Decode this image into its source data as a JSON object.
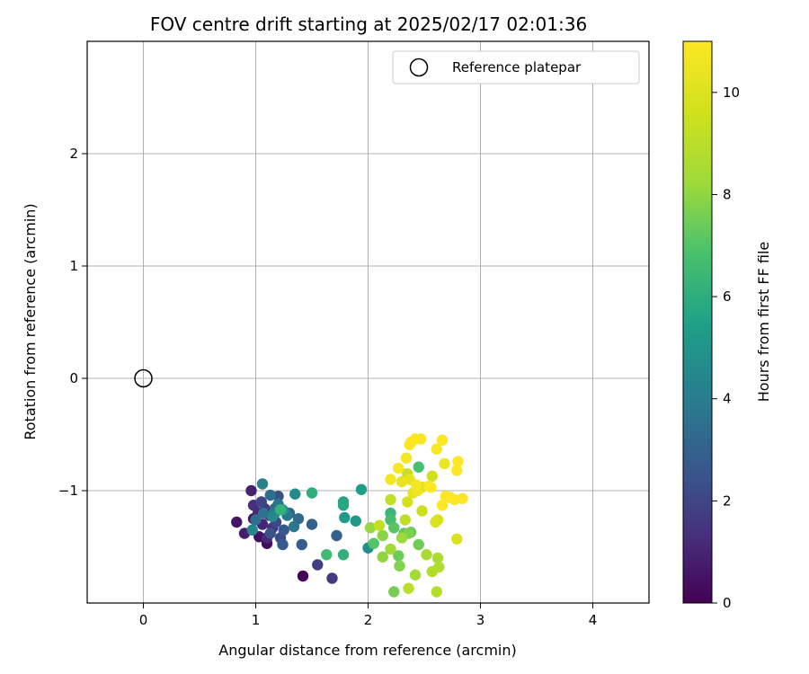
{
  "chart_data": {
    "type": "scatter",
    "title": "FOV centre drift starting at 2025/02/17 02:01:36",
    "xlabel": "Angular distance from reference (arcmin)",
    "ylabel": "Rotation from reference (arcmin)",
    "xlim": [
      -0.5,
      4.5
    ],
    "ylim": [
      -2.0,
      3.0
    ],
    "x_ticks": [
      0,
      1,
      2,
      3,
      4
    ],
    "x_tick_labels": [
      "0",
      "1",
      "2",
      "3",
      "4"
    ],
    "y_ticks": [
      -1,
      0,
      1,
      2
    ],
    "y_tick_labels": [
      "−1",
      "0",
      "1",
      "2"
    ],
    "grid": true,
    "legend": {
      "location": "upper right",
      "label": "Reference platepar"
    },
    "reference_point": {
      "x": 0.0,
      "y": 0.0
    },
    "colorbar": {
      "label": "Hours from first FF file",
      "colormap": "viridis",
      "range": [
        0,
        11
      ],
      "ticks": [
        0,
        2,
        4,
        6,
        8,
        10
      ],
      "tick_labels": [
        "0",
        "2",
        "4",
        "6",
        "8",
        "10"
      ]
    },
    "points": [
      [
        1.42,
        -1.76,
        0.1
      ],
      [
        1.1,
        -1.47,
        0.3
      ],
      [
        1.03,
        -1.41,
        0.4
      ],
      [
        0.98,
        -1.25,
        0.5
      ],
      [
        0.83,
        -1.28,
        0.6
      ],
      [
        0.9,
        -1.38,
        0.8
      ],
      [
        0.96,
        -1.0,
        0.9
      ],
      [
        1.06,
        -1.3,
        1.0
      ],
      [
        1.1,
        -1.42,
        1.1
      ],
      [
        1.02,
        -1.2,
        1.2
      ],
      [
        0.98,
        -1.13,
        1.3
      ],
      [
        1.15,
        -1.33,
        1.4
      ],
      [
        1.08,
        -1.16,
        1.5
      ],
      [
        1.68,
        -1.78,
        1.6
      ],
      [
        1.55,
        -1.66,
        1.8
      ],
      [
        1.12,
        -1.22,
        1.9
      ],
      [
        1.05,
        -1.1,
        2.0
      ],
      [
        1.18,
        -1.28,
        2.1
      ],
      [
        1.22,
        -1.42,
        2.2
      ],
      [
        1.2,
        -1.05,
        2.3
      ],
      [
        1.13,
        -1.38,
        2.4
      ],
      [
        1.25,
        -1.35,
        2.6
      ],
      [
        1.24,
        -1.48,
        2.7
      ],
      [
        1.41,
        -1.48,
        2.8
      ],
      [
        1.5,
        -1.3,
        2.9
      ],
      [
        1.72,
        -1.4,
        3.0
      ],
      [
        1.17,
        -1.16,
        3.1
      ],
      [
        1.3,
        -1.2,
        3.2
      ],
      [
        1.38,
        -1.25,
        3.3
      ],
      [
        1.13,
        -1.04,
        3.4
      ],
      [
        1.0,
        -1.26,
        3.5
      ],
      [
        1.07,
        -1.2,
        3.6
      ],
      [
        1.2,
        -1.12,
        3.7
      ],
      [
        1.34,
        -1.32,
        3.8
      ],
      [
        1.28,
        -1.22,
        3.9
      ],
      [
        1.17,
        -1.2,
        4.0
      ],
      [
        1.06,
        -0.94,
        4.2
      ],
      [
        0.97,
        -1.35,
        4.4
      ],
      [
        1.15,
        -1.23,
        4.5
      ],
      [
        1.35,
        -1.03,
        4.6
      ],
      [
        2.0,
        -1.51,
        4.8
      ],
      [
        1.24,
        -1.17,
        5.0
      ],
      [
        1.89,
        -1.27,
        5.1
      ],
      [
        1.79,
        -1.24,
        5.2
      ],
      [
        1.94,
        -0.99,
        5.4
      ],
      [
        1.78,
        -1.1,
        5.6
      ],
      [
        1.78,
        -1.13,
        5.8
      ],
      [
        1.5,
        -1.02,
        6.0
      ],
      [
        1.78,
        -1.57,
        6.1
      ],
      [
        1.22,
        -1.17,
        6.2
      ],
      [
        2.2,
        -1.2,
        6.4
      ],
      [
        1.63,
        -1.57,
        6.6
      ],
      [
        2.2,
        -1.26,
        6.7
      ],
      [
        2.45,
        -0.79,
        6.8
      ],
      [
        2.05,
        -1.47,
        7.0
      ],
      [
        2.23,
        -1.33,
        7.1
      ],
      [
        2.32,
        -1.38,
        7.2
      ],
      [
        2.38,
        -1.37,
        7.3
      ],
      [
        2.27,
        -1.58,
        7.4
      ],
      [
        2.45,
        -1.48,
        7.5
      ],
      [
        2.23,
        -1.9,
        7.6
      ],
      [
        2.36,
        -1.38,
        7.7
      ],
      [
        2.28,
        -1.67,
        7.8
      ],
      [
        2.13,
        -1.4,
        7.9
      ],
      [
        2.13,
        -1.59,
        8.0
      ],
      [
        2.02,
        -1.33,
        8.1
      ],
      [
        2.3,
        -1.42,
        8.2
      ],
      [
        2.2,
        -1.52,
        8.3
      ],
      [
        2.42,
        -1.75,
        8.4
      ],
      [
        2.52,
        -1.57,
        8.5
      ],
      [
        2.62,
        -1.6,
        8.6
      ],
      [
        2.63,
        -1.68,
        8.7
      ],
      [
        2.57,
        -1.72,
        8.8
      ],
      [
        2.61,
        -1.9,
        8.9
      ],
      [
        2.36,
        -1.87,
        9.0
      ],
      [
        2.33,
        -1.26,
        9.1
      ],
      [
        2.2,
        -1.08,
        9.2
      ],
      [
        2.1,
        -1.31,
        9.3
      ],
      [
        2.35,
        -0.85,
        9.4
      ],
      [
        2.48,
        -1.18,
        9.5
      ],
      [
        2.57,
        -0.87,
        9.6
      ],
      [
        2.35,
        -1.1,
        9.7
      ],
      [
        2.62,
        -1.26,
        9.8
      ],
      [
        2.6,
        -1.28,
        9.9
      ],
      [
        2.79,
        -1.43,
        10.0
      ],
      [
        2.48,
        -0.97,
        10.1
      ],
      [
        2.4,
        -1.02,
        10.2
      ],
      [
        2.37,
        -0.9,
        10.3
      ],
      [
        2.3,
        -0.92,
        10.4
      ],
      [
        2.68,
        -0.76,
        10.5
      ],
      [
        2.73,
        -1.06,
        10.6
      ],
      [
        2.44,
        -1.0,
        10.6
      ],
      [
        2.2,
        -0.9,
        10.7
      ],
      [
        2.34,
        -0.71,
        10.7
      ],
      [
        2.43,
        -0.95,
        10.8
      ],
      [
        2.54,
        -0.96,
        10.8
      ],
      [
        2.27,
        -0.8,
        10.8
      ],
      [
        2.37,
        -0.59,
        10.9
      ],
      [
        2.42,
        -0.54,
        10.9
      ],
      [
        2.47,
        -0.54,
        10.9
      ],
      [
        2.61,
        -0.63,
        10.9
      ],
      [
        2.66,
        -0.55,
        11.0
      ],
      [
        2.79,
        -0.82,
        11.0
      ],
      [
        2.8,
        -0.74,
        11.0
      ],
      [
        2.69,
        -1.05,
        11.0
      ],
      [
        2.66,
        -1.13,
        11.0
      ],
      [
        2.77,
        -1.08,
        11.0
      ],
      [
        2.84,
        -1.07,
        11.0
      ],
      [
        2.56,
        -0.97,
        11.0
      ],
      [
        2.38,
        -0.57,
        11.0
      ]
    ]
  }
}
